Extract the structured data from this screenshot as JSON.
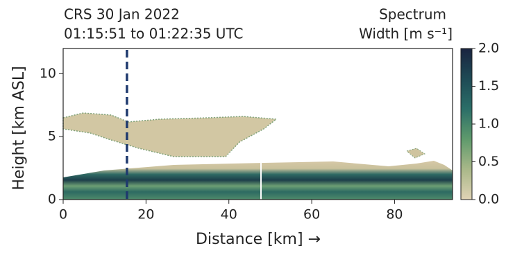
{
  "chart_data": {
    "type": "heatmap",
    "title_left": [
      "CRS 30 Jan 2022",
      "01:15:51 to 01:22:35 UTC"
    ],
    "title_right": [
      "Spectrum",
      "Width [m s⁻¹]"
    ],
    "xlabel": "Distance [km] →",
    "ylabel": "Height [km ASL]",
    "xlim": [
      0,
      94
    ],
    "xticks": [
      0,
      20,
      40,
      60,
      80
    ],
    "ylim": [
      0,
      12
    ],
    "yticks": [
      0,
      5,
      10
    ],
    "marker_x": 15.4,
    "marker_color": "#1f3a6e",
    "colorbar": {
      "lim": [
        0,
        2
      ],
      "ticks": [
        {
          "value": 0,
          "label": "0.0"
        },
        0.5,
        {
          "value": 1,
          "label": "1.0"
        },
        1.5,
        {
          "value": 2,
          "label": "2.0"
        }
      ],
      "colormap": [
        "#e0d3b5",
        "#a9b889",
        "#5f9a6c",
        "#2b6e68",
        "#1e4a55",
        "#1a2440"
      ]
    }
  }
}
